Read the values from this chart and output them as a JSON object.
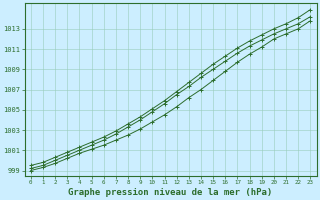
{
  "xlabel": "Graphe pression niveau de la mer (hPa)",
  "bg_color": "#cceeff",
  "plot_bg_color": "#cceeff",
  "grid_color": "#99ccbb",
  "line_color": "#2d6e2d",
  "xlim": [
    -0.5,
    23.5
  ],
  "ylim": [
    998.5,
    1015.5
  ],
  "yticks": [
    999,
    1001,
    1003,
    1005,
    1007,
    1009,
    1011,
    1013
  ],
  "xticks": [
    0,
    1,
    2,
    3,
    4,
    5,
    6,
    7,
    8,
    9,
    10,
    11,
    12,
    13,
    14,
    15,
    16,
    17,
    18,
    19,
    20,
    21,
    22,
    23
  ],
  "series1": [
    999.0,
    999.3,
    999.7,
    1000.2,
    1000.7,
    1001.1,
    1001.5,
    1002.0,
    1002.5,
    1003.1,
    1003.8,
    1004.5,
    1005.3,
    1006.2,
    1007.0,
    1007.9,
    1008.8,
    1009.7,
    1010.5,
    1011.2,
    1012.0,
    1012.5,
    1013.0,
    1013.8
  ],
  "series2": [
    999.2,
    999.5,
    1000.0,
    1000.5,
    1001.0,
    1001.5,
    1002.0,
    1002.6,
    1003.3,
    1004.0,
    1004.8,
    1005.6,
    1006.5,
    1007.3,
    1008.2,
    1009.0,
    1009.8,
    1010.6,
    1011.3,
    1011.9,
    1012.5,
    1013.0,
    1013.5,
    1014.2
  ],
  "series3": [
    999.5,
    999.8,
    1000.3,
    1000.8,
    1001.3,
    1001.8,
    1002.3,
    1002.9,
    1003.6,
    1004.3,
    1005.1,
    1005.9,
    1006.8,
    1007.7,
    1008.6,
    1009.5,
    1010.3,
    1011.1,
    1011.8,
    1012.4,
    1013.0,
    1013.5,
    1014.1,
    1014.9
  ]
}
